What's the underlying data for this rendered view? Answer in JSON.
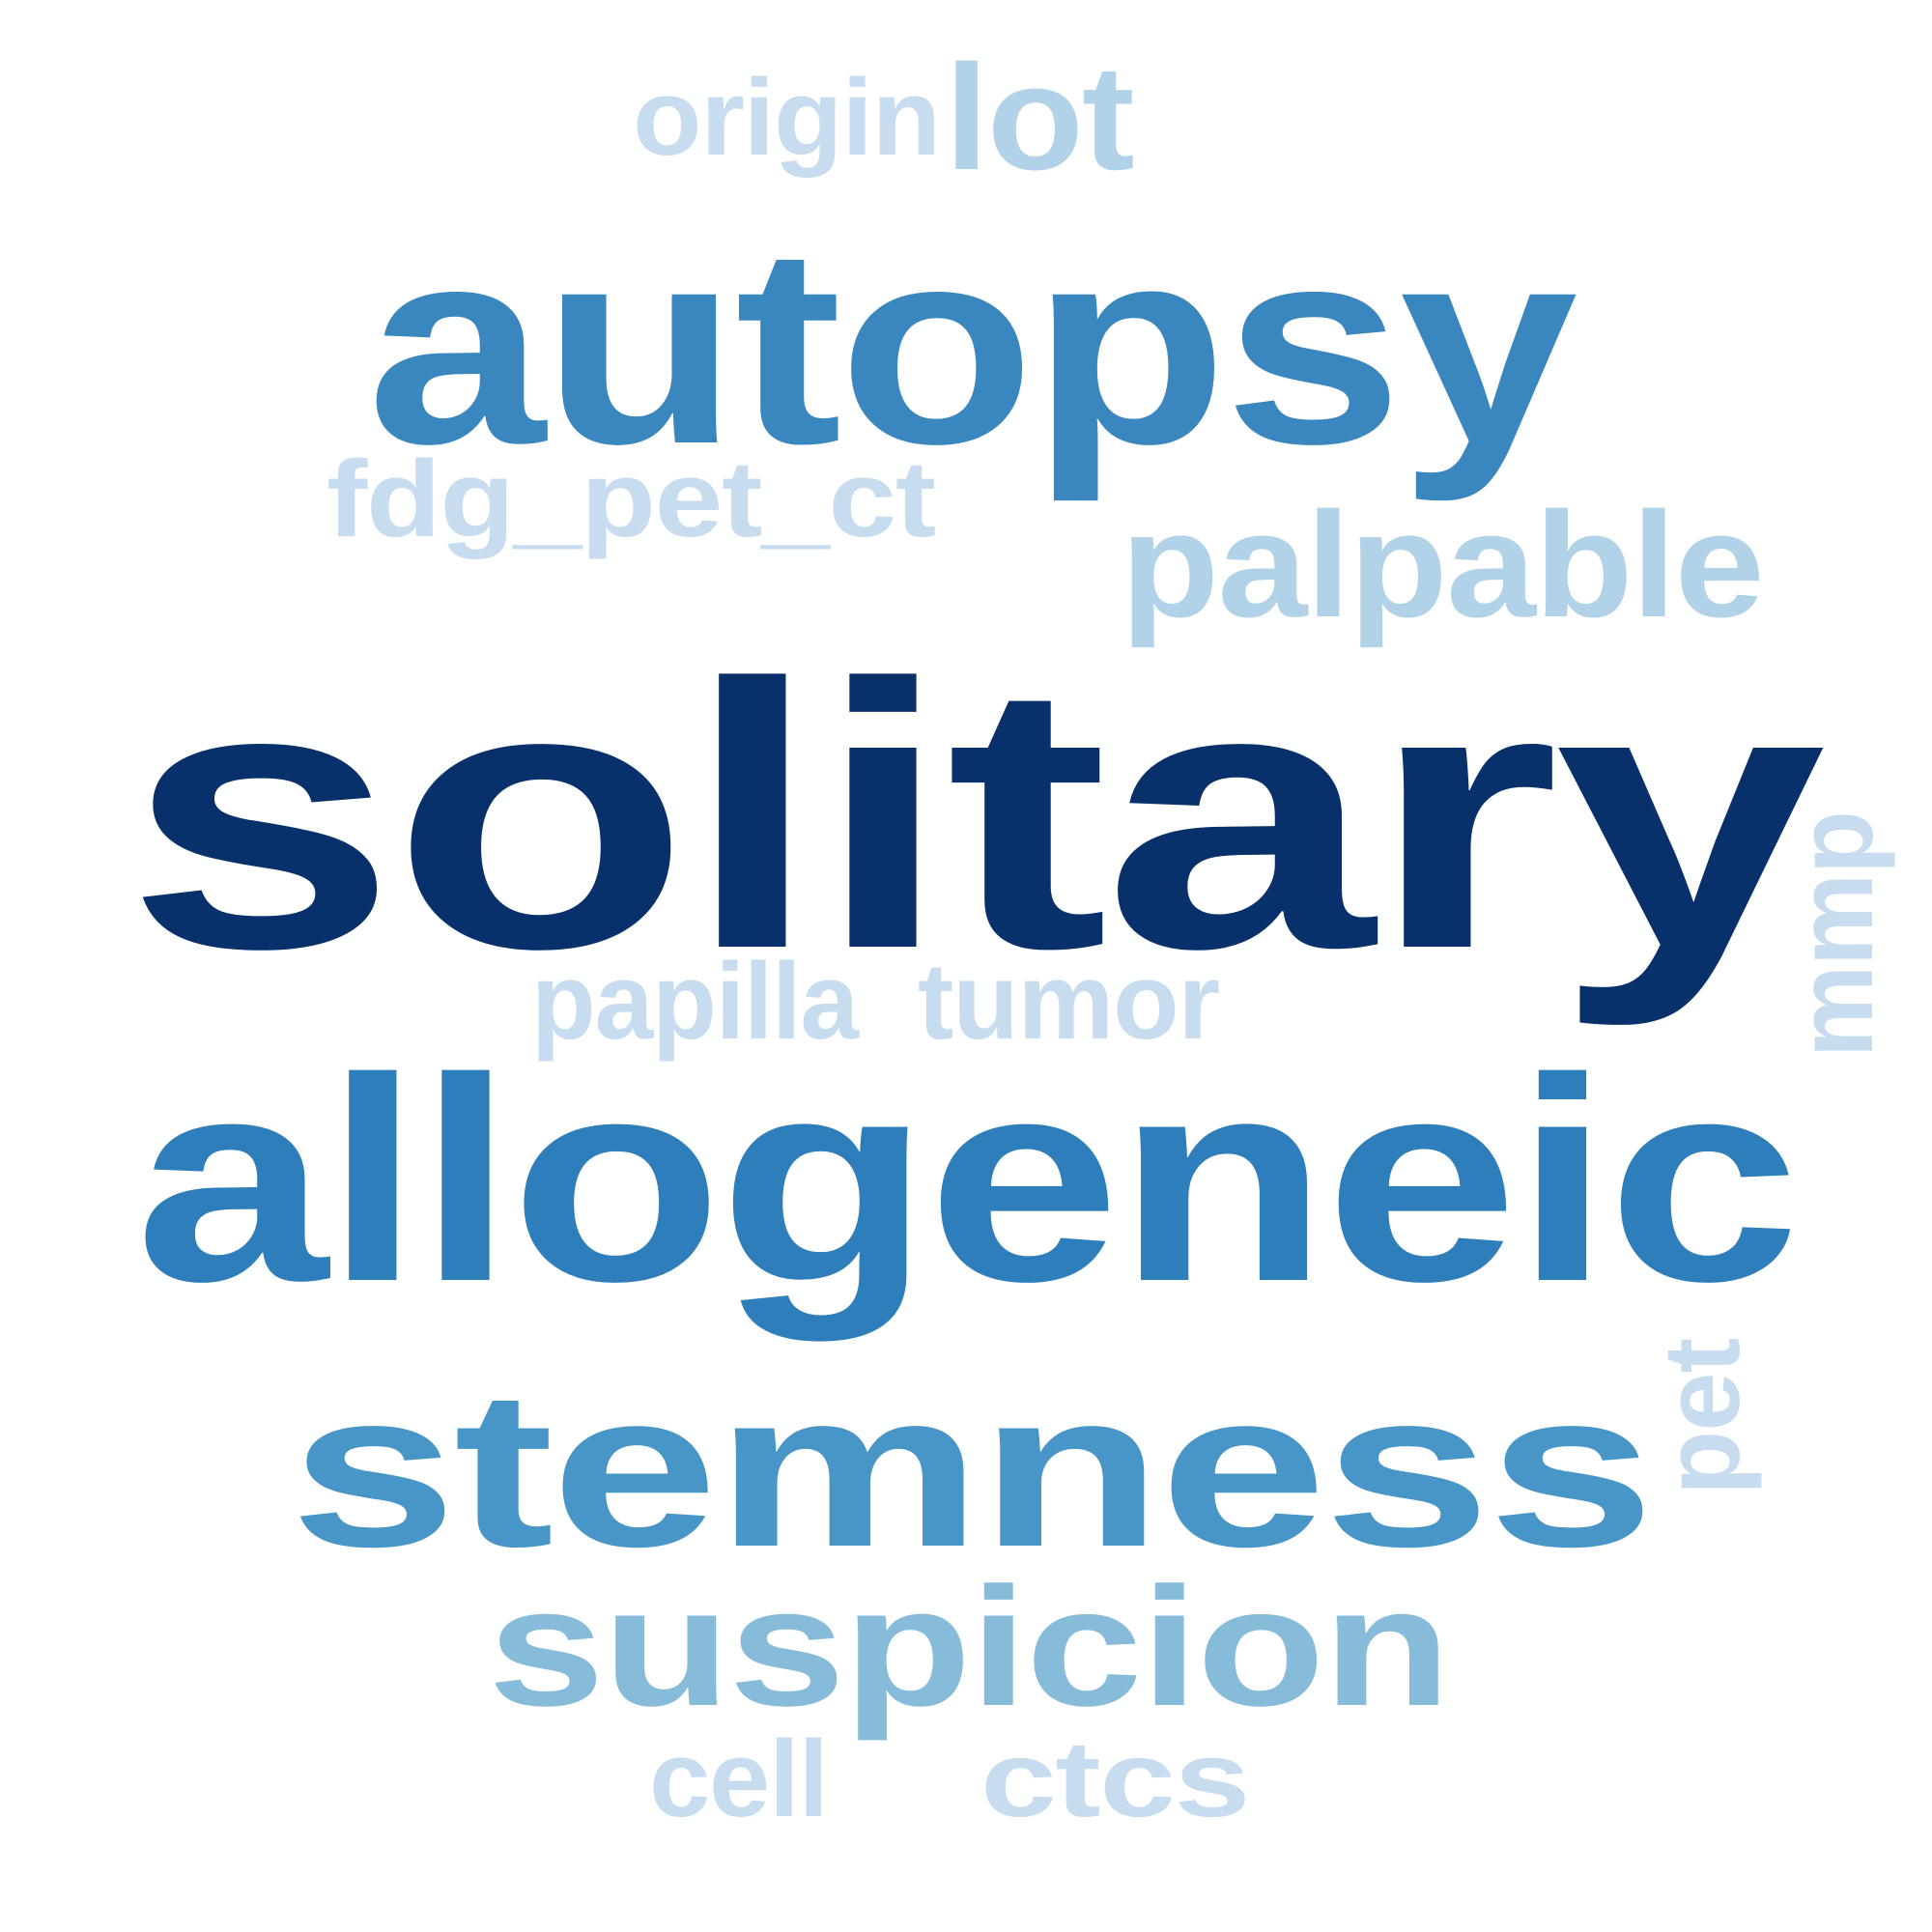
{
  "words": [
    {
      "text": "solitary",
      "weight": 1.0,
      "color": "#08306b"
    },
    {
      "text": "allogeneic",
      "weight": 0.75,
      "color": "#2e7ebb"
    },
    {
      "text": "autopsy",
      "weight": 0.7,
      "color": "#3a87c0"
    },
    {
      "text": "stemness",
      "weight": 0.62,
      "color": "#4896c8"
    },
    {
      "text": "suspicion",
      "weight": 0.5,
      "color": "#87bbda"
    },
    {
      "text": "palpable",
      "weight": 0.3,
      "color": "#b2d2e8"
    },
    {
      "text": "lot",
      "weight": 0.3,
      "color": "#b2d2e8"
    },
    {
      "text": "origin",
      "weight": 0.22,
      "color": "#c8dcf0"
    },
    {
      "text": "fdg_pet_ct",
      "weight": 0.22,
      "color": "#c8dcf0"
    },
    {
      "text": "papilla",
      "weight": 0.22,
      "color": "#c8dcf0"
    },
    {
      "text": "tumor",
      "weight": 0.22,
      "color": "#c8dcf0"
    },
    {
      "text": "mmp",
      "weight": 0.22,
      "color": "#c8dcf0"
    },
    {
      "text": "pet",
      "weight": 0.22,
      "color": "#c8dcf0"
    },
    {
      "text": "cell",
      "weight": 0.22,
      "color": "#c8dcf0"
    },
    {
      "text": "ctcs",
      "weight": 0.22,
      "color": "#c8dcf0"
    }
  ]
}
